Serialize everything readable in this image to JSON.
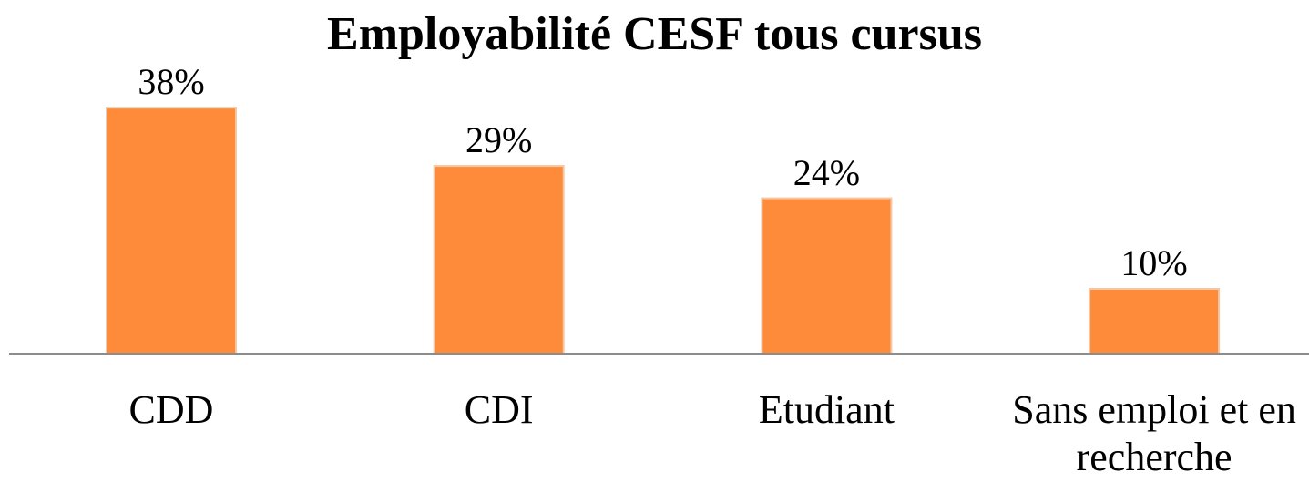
{
  "chart_data": {
    "type": "bar",
    "title": "Employabilité CESF tous cursus",
    "categories": [
      "CDD",
      "CDI",
      "Etudiant",
      "Sans emploi et en recherche"
    ],
    "values": [
      38,
      29,
      24,
      10
    ],
    "value_labels": [
      "38%",
      "29%",
      "24%",
      "10%"
    ],
    "color": "#fd8b3a"
  }
}
